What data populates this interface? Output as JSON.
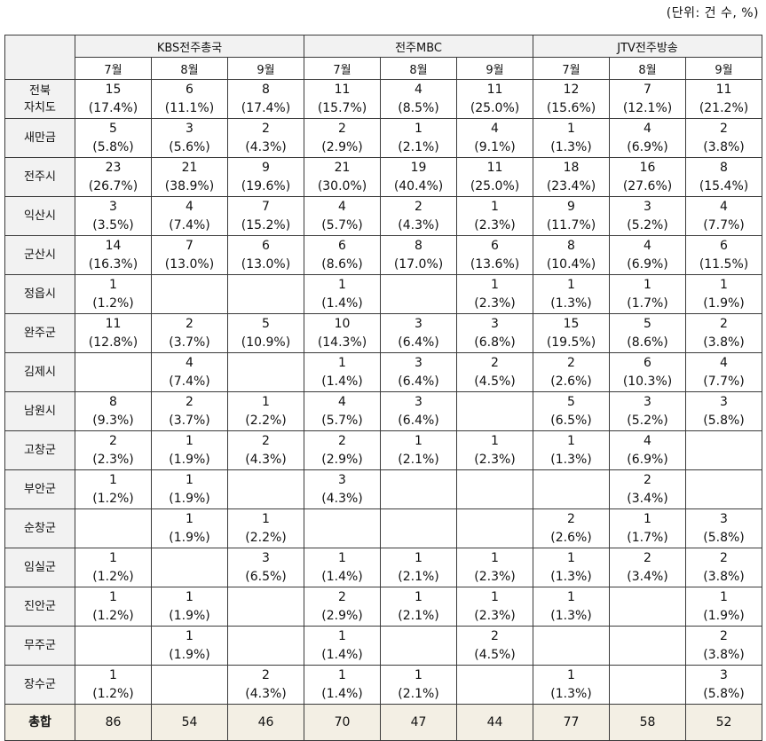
{
  "unit_label": "(단위: 건 수, %)",
  "groups": [
    "KBS전주총국",
    "전주MBC",
    "JTV전주방송"
  ],
  "months": [
    "7월",
    "8월",
    "9월"
  ],
  "rows": [
    {
      "label": "전북 자치도",
      "cells": [
        [
          "15",
          "(17.4%)"
        ],
        [
          "6",
          "(11.1%)"
        ],
        [
          "8",
          "(17.4%)"
        ],
        [
          "11",
          "(15.7%)"
        ],
        [
          "4",
          "(8.5%)"
        ],
        [
          "11",
          "(25.0%)"
        ],
        [
          "12",
          "(15.6%)"
        ],
        [
          "7",
          "(12.1%)"
        ],
        [
          "11",
          "(21.2%)"
        ]
      ]
    },
    {
      "label": "새만금",
      "cells": [
        [
          "5",
          "(5.8%)"
        ],
        [
          "3",
          "(5.6%)"
        ],
        [
          "2",
          "(4.3%)"
        ],
        [
          "2",
          "(2.9%)"
        ],
        [
          "1",
          "(2.1%)"
        ],
        [
          "4",
          "(9.1%)"
        ],
        [
          "1",
          "(1.3%)"
        ],
        [
          "4",
          "(6.9%)"
        ],
        [
          "2",
          "(3.8%)"
        ]
      ]
    },
    {
      "label": "전주시",
      "cells": [
        [
          "23",
          "(26.7%)"
        ],
        [
          "21",
          "(38.9%)"
        ],
        [
          "9",
          "(19.6%)"
        ],
        [
          "21",
          "(30.0%)"
        ],
        [
          "19",
          "(40.4%)"
        ],
        [
          "11",
          "(25.0%)"
        ],
        [
          "18",
          "(23.4%)"
        ],
        [
          "16",
          "(27.6%)"
        ],
        [
          "8",
          "(15.4%)"
        ]
      ]
    },
    {
      "label": "익산시",
      "cells": [
        [
          "3",
          "(3.5%)"
        ],
        [
          "4",
          "(7.4%)"
        ],
        [
          "7",
          "(15.2%)"
        ],
        [
          "4",
          "(5.7%)"
        ],
        [
          "2",
          "(4.3%)"
        ],
        [
          "1",
          "(2.3%)"
        ],
        [
          "9",
          "(11.7%)"
        ],
        [
          "3",
          "(5.2%)"
        ],
        [
          "4",
          "(7.7%)"
        ]
      ]
    },
    {
      "label": "군산시",
      "cells": [
        [
          "14",
          "(16.3%)"
        ],
        [
          "7",
          "(13.0%)"
        ],
        [
          "6",
          "(13.0%)"
        ],
        [
          "6",
          "(8.6%)"
        ],
        [
          "8",
          "(17.0%)"
        ],
        [
          "6",
          "(13.6%)"
        ],
        [
          "8",
          "(10.4%)"
        ],
        [
          "4",
          "(6.9%)"
        ],
        [
          "6",
          "(11.5%)"
        ]
      ]
    },
    {
      "label": "정읍시",
      "cells": [
        [
          "1",
          "(1.2%)"
        ],
        [
          "",
          ""
        ],
        [
          "",
          ""
        ],
        [
          "1",
          "(1.4%)"
        ],
        [
          "",
          ""
        ],
        [
          "1",
          "(2.3%)"
        ],
        [
          "1",
          "(1.3%)"
        ],
        [
          "1",
          "(1.7%)"
        ],
        [
          "1",
          "(1.9%)"
        ]
      ]
    },
    {
      "label": "완주군",
      "cells": [
        [
          "11",
          "(12.8%)"
        ],
        [
          "2",
          "(3.7%)"
        ],
        [
          "5",
          "(10.9%)"
        ],
        [
          "10",
          "(14.3%)"
        ],
        [
          "3",
          "(6.4%)"
        ],
        [
          "3",
          "(6.8%)"
        ],
        [
          "15",
          "(19.5%)"
        ],
        [
          "5",
          "(8.6%)"
        ],
        [
          "2",
          "(3.8%)"
        ]
      ]
    },
    {
      "label": "김제시",
      "cells": [
        [
          "",
          ""
        ],
        [
          "4",
          "(7.4%)"
        ],
        [
          "",
          ""
        ],
        [
          "1",
          "(1.4%)"
        ],
        [
          "3",
          "(6.4%)"
        ],
        [
          "2",
          "(4.5%)"
        ],
        [
          "2",
          "(2.6%)"
        ],
        [
          "6",
          "(10.3%)"
        ],
        [
          "4",
          "(7.7%)"
        ]
      ]
    },
    {
      "label": "남원시",
      "cells": [
        [
          "8",
          "(9.3%)"
        ],
        [
          "2",
          "(3.7%)"
        ],
        [
          "1",
          "(2.2%)"
        ],
        [
          "4",
          "(5.7%)"
        ],
        [
          "3",
          "(6.4%)"
        ],
        [
          "",
          ""
        ],
        [
          "5",
          "(6.5%)"
        ],
        [
          "3",
          "(5.2%)"
        ],
        [
          "3",
          "(5.8%)"
        ]
      ]
    },
    {
      "label": "고창군",
      "cells": [
        [
          "2",
          "(2.3%)"
        ],
        [
          "1",
          "(1.9%)"
        ],
        [
          "2",
          "(4.3%)"
        ],
        [
          "2",
          "(2.9%)"
        ],
        [
          "1",
          "(2.1%)"
        ],
        [
          "1",
          "(2.3%)"
        ],
        [
          "1",
          "(1.3%)"
        ],
        [
          "4",
          "(6.9%)"
        ],
        [
          "",
          ""
        ]
      ]
    },
    {
      "label": "부안군",
      "cells": [
        [
          "1",
          "(1.2%)"
        ],
        [
          "1",
          "(1.9%)"
        ],
        [
          "",
          ""
        ],
        [
          "3",
          "(4.3%)"
        ],
        [
          "",
          ""
        ],
        [
          "",
          ""
        ],
        [
          "",
          ""
        ],
        [
          "2",
          "(3.4%)"
        ],
        [
          "",
          ""
        ]
      ]
    },
    {
      "label": "순창군",
      "cells": [
        [
          "",
          ""
        ],
        [
          "1",
          "(1.9%)"
        ],
        [
          "1",
          "(2.2%)"
        ],
        [
          "",
          ""
        ],
        [
          "",
          ""
        ],
        [
          "",
          ""
        ],
        [
          "2",
          "(2.6%)"
        ],
        [
          "1",
          "(1.7%)"
        ],
        [
          "3",
          "(5.8%)"
        ]
      ]
    },
    {
      "label": "임실군",
      "cells": [
        [
          "1",
          "(1.2%)"
        ],
        [
          "",
          ""
        ],
        [
          "3",
          "(6.5%)"
        ],
        [
          "1",
          "(1.4%)"
        ],
        [
          "1",
          "(2.1%)"
        ],
        [
          "1",
          "(2.3%)"
        ],
        [
          "1",
          "(1.3%)"
        ],
        [
          "2",
          "(3.4%)"
        ],
        [
          "2",
          "(3.8%)"
        ]
      ]
    },
    {
      "label": "진안군",
      "cells": [
        [
          "1",
          "(1.2%)"
        ],
        [
          "1",
          "(1.9%)"
        ],
        [
          "",
          ""
        ],
        [
          "2",
          "(2.9%)"
        ],
        [
          "1",
          "(2.1%)"
        ],
        [
          "1",
          "(2.3%)"
        ],
        [
          "1",
          "(1.3%)"
        ],
        [
          "",
          ""
        ],
        [
          "1",
          "(1.9%)"
        ]
      ]
    },
    {
      "label": "무주군",
      "cells": [
        [
          "",
          ""
        ],
        [
          "1",
          "(1.9%)"
        ],
        [
          "",
          ""
        ],
        [
          "1",
          "(1.4%)"
        ],
        [
          "",
          ""
        ],
        [
          "2",
          "(4.5%)"
        ],
        [
          "",
          ""
        ],
        [
          "",
          ""
        ],
        [
          "2",
          "(3.8%)"
        ]
      ]
    },
    {
      "label": "장수군",
      "cells": [
        [
          "1",
          "(1.2%)"
        ],
        [
          "",
          ""
        ],
        [
          "2",
          "(4.3%)"
        ],
        [
          "1",
          "(1.4%)"
        ],
        [
          "1",
          "(2.1%)"
        ],
        [
          "",
          ""
        ],
        [
          "1",
          "(1.3%)"
        ],
        [
          "",
          ""
        ],
        [
          "3",
          "(5.8%)"
        ]
      ]
    }
  ],
  "total": {
    "label": "총합",
    "values": [
      "86",
      "54",
      "46",
      "70",
      "47",
      "44",
      "77",
      "58",
      "52"
    ]
  }
}
